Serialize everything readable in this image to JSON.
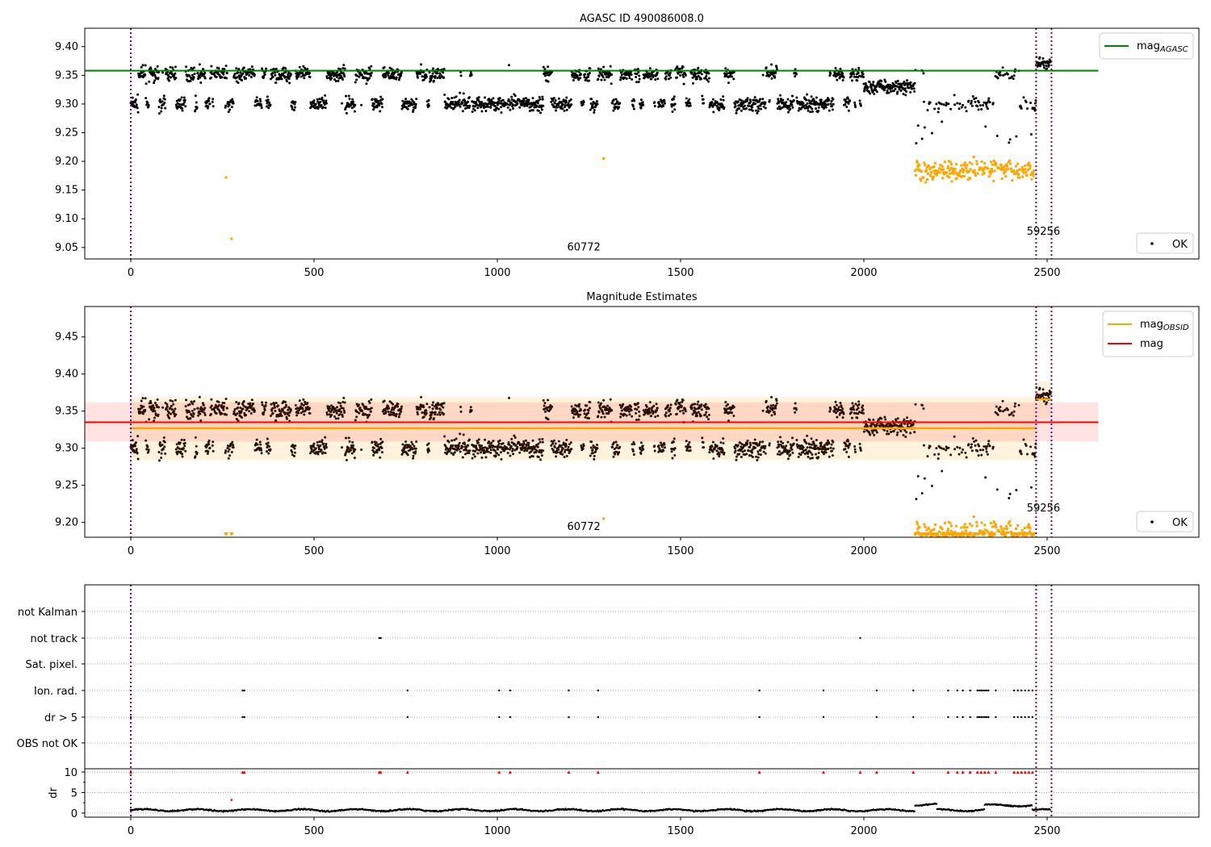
{
  "chart_data": [
    {
      "type": "scatter",
      "title": "AGASC ID 490086008.0",
      "ylim": [
        9.03,
        9.432
      ],
      "xlim": [
        -125,
        2913
      ],
      "yticks": [
        "9.05",
        "9.10",
        "9.15",
        "9.20",
        "9.25",
        "9.30",
        "9.35",
        "9.40"
      ],
      "xticks": [
        "0",
        "500",
        "1000",
        "1500",
        "2000",
        "2500"
      ],
      "legend": [
        {
          "label": "mag",
          "sub": "AGASC",
          "color": "#008000"
        }
      ],
      "legend_placement": "top-right",
      "legend2": {
        "label": "OK"
      },
      "legend2_placement": "bottom-right",
      "hlines": [
        {
          "name": "mag_AGASC",
          "y": 9.358,
          "x": [
            -125,
            2640
          ],
          "color": "#008000"
        }
      ],
      "annotations": [
        {
          "text": "60772",
          "x": 1236,
          "y": 9.045
        },
        {
          "text": "59256",
          "x": 2490,
          "y": 9.072
        }
      ]
    },
    {
      "type": "scatter",
      "title": "Magnitude Estimates",
      "ylim": [
        9.18,
        9.491
      ],
      "xlim": [
        -125,
        2913
      ],
      "yticks": [
        "9.20",
        "9.25",
        "9.30",
        "9.35",
        "9.40",
        "9.45"
      ],
      "xticks": [
        "0",
        "500",
        "1000",
        "1500",
        "2000",
        "2500"
      ],
      "legend": [
        {
          "label": "mag",
          "sub": "OBSID",
          "color": "#ffa500"
        },
        {
          "label": "mag",
          "sub": "",
          "color": "#ff0000"
        }
      ],
      "legend_placement": "top-right",
      "legend2": {
        "label": "OK"
      },
      "mag": {
        "y": 9.335,
        "band": [
          9.309,
          9.362
        ],
        "x": [
          -125,
          2640
        ]
      },
      "mag_obsid": [
        {
          "x": [
            0,
            2470
          ],
          "y": 9.327,
          "band": [
            9.284,
            9.369
          ]
        },
        {
          "x": [
            2470,
            2510
          ],
          "y": 9.366,
          "band": [
            9.34,
            9.39
          ]
        }
      ],
      "annotations": [
        {
          "text": "60772",
          "x": 1236,
          "y": 9.19
        },
        {
          "text": "59256",
          "x": 2490,
          "y": 9.215
        }
      ]
    },
    {
      "type": "scatter",
      "title": "",
      "categories": [
        "not Kalman",
        "not track",
        "Sat. pixel.",
        "Ion. rad.",
        "dr > 5",
        "OBS not OK"
      ],
      "flags": {
        "not track": [
          678,
          682,
          1990
        ],
        "Ion. rad.": [
          0,
          305,
          310,
          755,
          1005,
          1035,
          1195,
          1275,
          1715,
          1890,
          2035,
          2135,
          2230,
          2255,
          2270,
          2290,
          2310,
          2315,
          2320,
          2325,
          2330,
          2335,
          2340,
          2360,
          2410,
          2420,
          2430,
          2440,
          2450,
          2460
        ],
        "dr > 5": [
          0,
          305,
          310,
          755,
          1005,
          1035,
          1195,
          1275,
          1715,
          1890,
          2035,
          2135,
          2230,
          2255,
          2270,
          2290,
          2310,
          2315,
          2320,
          2325,
          2330,
          2335,
          2340,
          2360,
          2410,
          2420,
          2430,
          2440,
          2450,
          2460
        ]
      },
      "dr_panel": {
        "ylabel": "dr",
        "yticks": [
          "0",
          "5",
          "10"
        ],
        "ylim": [
          -1,
          10.8
        ],
        "clip": 10,
        "red_triangles_x": [
          0,
          305,
          310,
          678,
          682,
          755,
          1005,
          1035,
          1195,
          1275,
          1715,
          1890,
          1990,
          2035,
          2135,
          2230,
          2255,
          2270,
          2290,
          2310,
          2320,
          2330,
          2340,
          2360,
          2410,
          2420,
          2430,
          2440,
          2450,
          2460
        ],
        "red_outlier": {
          "x": 275,
          "y": 3.2
        }
      },
      "xticks": [
        "0",
        "500",
        "1000",
        "1500",
        "2000",
        "2500"
      ]
    }
  ],
  "vlines_x": [
    0,
    2470,
    2512
  ],
  "generator": {
    "n": 2510,
    "high_level": 9.352,
    "low_level": 9.3,
    "spread": 0.012,
    "dip_region": [
      2000,
      2140,
      9.33
    ],
    "end_region": [
      2470,
      2512,
      9.37
    ],
    "orange_region": [
      2140,
      2465,
      9.185,
      0.018
    ],
    "orange_outliers": [
      [
        260,
        9.172
      ],
      [
        275,
        9.065
      ],
      [
        1290,
        9.205
      ]
    ],
    "sparse_black_region": [
      2140,
      2465
    ],
    "dr_base": 0.7,
    "dr_high_regions": [
      [
        2140,
        2200,
        2.0
      ],
      [
        2330,
        2460,
        1.9
      ]
    ]
  }
}
